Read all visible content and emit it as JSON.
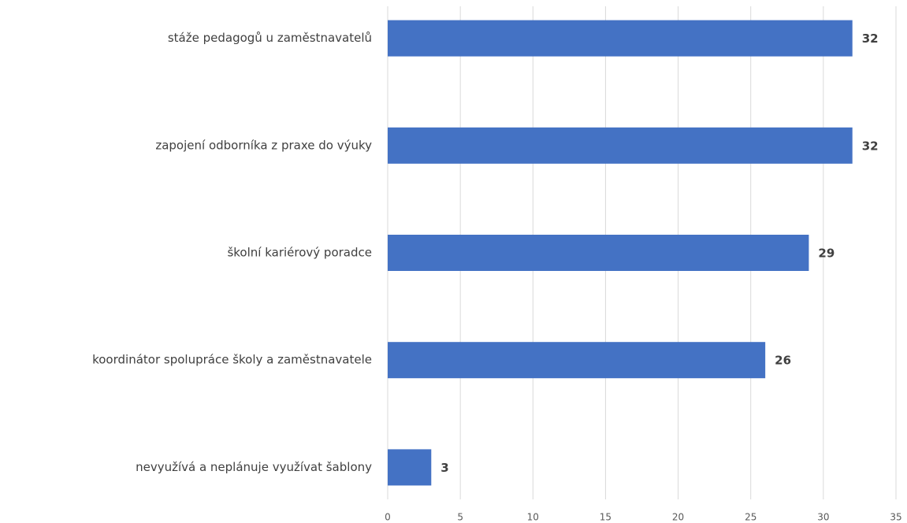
{
  "chart_data": {
    "type": "bar",
    "orientation": "horizontal",
    "categories": [
      "stáže pedagogů u zaměstnavatelů",
      "zapojení odborníka z praxe do výuky",
      "školní kariérový poradce",
      "koordinátor spolupráce školy a zaměstnavatele",
      "nevyužívá a neplánuje využívat šablony"
    ],
    "values": [
      32,
      32,
      29,
      26,
      3
    ],
    "color": "#4472c4",
    "xlim": [
      0,
      35
    ],
    "xticks": [
      0,
      5,
      10,
      15,
      20,
      25,
      30,
      35
    ],
    "grid": true
  }
}
